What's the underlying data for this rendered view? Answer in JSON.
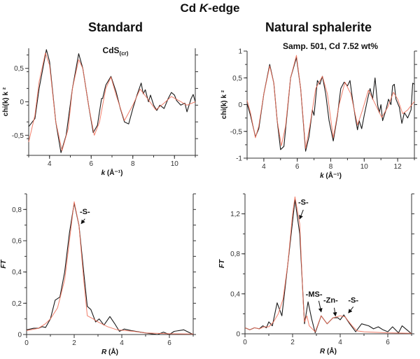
{
  "figure_title": "Cd K-edge",
  "figure_title_prefix": "Cd ",
  "figure_title_italic": "K",
  "figure_title_suffix": "-edge",
  "columns": [
    "Standard",
    "Natural sphalerite"
  ],
  "colors": {
    "experiment": "#1a1a1a",
    "fit": "#f0705a",
    "axis": "#333333"
  },
  "chart_data": [
    {
      "type": "line",
      "subtitle": "CdS",
      "subtitle_sub": "(cr)",
      "xlabel": "k (Å⁻¹)",
      "xlabel_italic": "k",
      "xlabel_rest": " (Å⁻¹)",
      "ylabel": "chi(k) k ²",
      "xlim": [
        3,
        11
      ],
      "ylim": [
        -0.8,
        0.8
      ],
      "xticks": [
        {
          "v": 4,
          "label": "4"
        },
        {
          "v": 6,
          "label": "6"
        },
        {
          "v": 8,
          "label": "8"
        },
        {
          "v": 10,
          "label": "10"
        }
      ],
      "yticks": [
        {
          "v": -0.5,
          "label": "-0,5"
        },
        {
          "v": 0,
          "label": "0"
        },
        {
          "v": 0.5,
          "label": "0,5"
        }
      ],
      "series": [
        {
          "role": "experiment",
          "x": [
            3,
            3.3,
            3.5,
            3.85,
            4.0,
            4.3,
            4.55,
            4.8,
            5.1,
            5.4,
            5.6,
            5.9,
            6.1,
            6.3,
            6.5,
            6.55,
            6.7,
            6.95,
            7.2,
            7.4,
            7.6,
            7.8,
            8.0,
            8.2,
            8.4,
            8.5,
            8.6,
            8.75,
            8.85,
            9.0,
            9.15,
            9.3,
            9.5,
            9.7,
            9.85,
            10.0,
            10.1,
            10.3,
            10.5,
            10.6,
            10.8,
            10.9,
            11
          ],
          "y": [
            -0.37,
            -0.25,
            0.2,
            0.78,
            0.6,
            -0.3,
            -0.76,
            -0.5,
            0.2,
            0.72,
            0.5,
            -0.1,
            -0.46,
            -0.35,
            0.05,
            0.05,
            0.25,
            0.38,
            0.15,
            -0.1,
            -0.3,
            -0.33,
            -0.1,
            0.1,
            0.28,
            0.12,
            0.18,
            0.0,
            0.1,
            -0.05,
            -0.13,
            -0.05,
            -0.1,
            0.05,
            0.14,
            0.1,
            0.02,
            -0.05,
            -0.02,
            -0.15,
            0.05,
            0.11,
            0.0
          ]
        },
        {
          "role": "fit",
          "x": [
            3,
            3.3,
            3.5,
            3.8,
            4.0,
            4.3,
            4.6,
            4.9,
            5.1,
            5.4,
            5.6,
            5.9,
            6.15,
            6.4,
            6.7,
            6.95,
            7.2,
            7.6,
            8.0,
            8.35,
            8.7,
            9.1,
            9.5,
            9.85,
            10.2,
            10.6,
            11
          ],
          "y": [
            -0.6,
            -0.2,
            0.3,
            0.73,
            0.55,
            -0.3,
            -0.73,
            -0.4,
            0.2,
            0.63,
            0.5,
            -0.1,
            -0.5,
            -0.3,
            0.2,
            0.37,
            0.1,
            -0.28,
            -0.05,
            0.19,
            0.05,
            -0.12,
            -0.02,
            0.08,
            0.02,
            -0.05,
            0.0
          ]
        }
      ],
      "annotations": []
    },
    {
      "type": "line",
      "subtitle": "Samp. 501, Cd 7.52 wt%",
      "subtitle_sub": "",
      "xlabel": "k (Å⁻¹)",
      "xlabel_italic": "k",
      "xlabel_rest": " (Å⁻¹)",
      "ylabel": "chi(k) k ²",
      "xlim": [
        3,
        13
      ],
      "ylim": [
        -1,
        1
      ],
      "xticks": [
        {
          "v": 4,
          "label": "4"
        },
        {
          "v": 6,
          "label": "6"
        },
        {
          "v": 8,
          "label": "8"
        },
        {
          "v": 10,
          "label": "10"
        },
        {
          "v": 12,
          "label": "12"
        }
      ],
      "yticks": [
        {
          "v": -1,
          "label": "-1"
        },
        {
          "v": -0.5,
          "label": "-0,5"
        },
        {
          "v": 0,
          "label": "0"
        },
        {
          "v": 0.5,
          "label": "0,5"
        },
        {
          "v": 1,
          "label": "1"
        }
      ],
      "series": [
        {
          "role": "experiment",
          "x": [
            3,
            3.2,
            3.5,
            3.7,
            4.0,
            4.35,
            4.6,
            4.8,
            5.0,
            5.2,
            5.6,
            5.95,
            6.2,
            6.5,
            6.7,
            6.9,
            7.0,
            7.2,
            7.35,
            7.5,
            7.7,
            7.9,
            8.15,
            8.4,
            8.6,
            8.8,
            9.0,
            9.15,
            9.3,
            9.5,
            9.6,
            9.7,
            9.85,
            10.0,
            10.2,
            10.35,
            10.5,
            10.65,
            10.8,
            10.9,
            11.0,
            11.1,
            11.3,
            11.45,
            11.6,
            11.7,
            11.8,
            11.9,
            12.1,
            12.25,
            12.4,
            12.6,
            12.8,
            12.9,
            13
          ],
          "y": [
            0.02,
            -0.2,
            -0.6,
            -0.45,
            0.2,
            0.75,
            0.4,
            -0.3,
            -0.84,
            -0.78,
            0.5,
            0.88,
            0.3,
            -0.87,
            -0.6,
            -0.1,
            -0.2,
            0.45,
            0.38,
            0.53,
            0.2,
            -0.3,
            -0.68,
            -0.2,
            0.3,
            0.42,
            0.35,
            0.45,
            0.1,
            -0.3,
            -0.47,
            -0.3,
            -0.45,
            -0.2,
            0.1,
            0.3,
            0.1,
            0.5,
            0.0,
            -0.15,
            0.0,
            -0.3,
            -0.1,
            0.1,
            0.0,
            0.35,
            0.38,
            0.1,
            -0.05,
            -0.35,
            -0.15,
            -0.25,
            -0.1,
            0.4,
            0.38
          ]
        },
        {
          "role": "fit",
          "x": [
            3,
            3.2,
            3.5,
            3.7,
            4.0,
            4.35,
            4.6,
            4.8,
            5.05,
            5.3,
            5.6,
            5.95,
            6.2,
            6.5,
            6.75,
            7.1,
            7.5,
            7.8,
            8.15,
            8.5,
            8.85,
            9.2,
            9.6,
            9.9,
            10.25,
            10.6,
            11.05,
            11.4,
            11.75,
            12.0,
            12.3,
            12.6,
            13
          ],
          "y": [
            0.08,
            -0.15,
            -0.62,
            -0.4,
            0.2,
            0.72,
            0.4,
            -0.3,
            -0.77,
            -0.4,
            0.5,
            0.92,
            0.3,
            -0.82,
            -0.4,
            0.3,
            0.53,
            0.2,
            -0.62,
            0.0,
            0.42,
            0.2,
            -0.38,
            -0.1,
            0.27,
            0.05,
            -0.24,
            -0.05,
            0.23,
            0.1,
            -0.17,
            -0.1,
            0.06
          ]
        }
      ],
      "annotations": []
    },
    {
      "type": "line",
      "subtitle": "",
      "subtitle_sub": "",
      "xlabel": "R (Å)",
      "xlabel_italic": "R",
      "xlabel_rest": " (Å)",
      "ylabel": "FT",
      "xlim": [
        0,
        7
      ],
      "ylim": [
        0,
        0.9
      ],
      "xticks": [
        {
          "v": 0,
          "label": "0"
        },
        {
          "v": 2,
          "label": "2"
        },
        {
          "v": 4,
          "label": "4"
        },
        {
          "v": 6,
          "label": "6"
        }
      ],
      "yticks": [
        {
          "v": 0,
          "label": "0"
        },
        {
          "v": 0.2,
          "label": "0,2"
        },
        {
          "v": 0.4,
          "label": "0,4"
        },
        {
          "v": 0.6,
          "label": "0,6"
        },
        {
          "v": 0.8,
          "label": "0,8"
        }
      ],
      "series": [
        {
          "role": "experiment",
          "x": [
            0,
            0.3,
            0.5,
            0.65,
            0.8,
            1.0,
            1.2,
            1.4,
            1.6,
            1.8,
            2.0,
            2.2,
            2.4,
            2.55,
            2.7,
            2.9,
            3.05,
            3.25,
            3.5,
            3.7,
            3.9,
            4.1,
            4.4,
            5,
            5.5,
            5.75,
            6.0,
            6.2,
            6.6,
            7
          ],
          "y": [
            0.03,
            0.04,
            0.04,
            0.05,
            0.045,
            0.1,
            0.22,
            0.24,
            0.4,
            0.65,
            0.84,
            0.7,
            0.4,
            0.18,
            0.16,
            0.08,
            0.1,
            0.06,
            0.115,
            0.07,
            0.02,
            0.035,
            0.025,
            0.01,
            0.0,
            0.015,
            0.0,
            0.02,
            0.03,
            0.0
          ]
        },
        {
          "role": "fit",
          "x": [
            0,
            0.5,
            0.8,
            1.0,
            1.3,
            1.6,
            1.8,
            2.0,
            2.2,
            2.4,
            2.55,
            2.8,
            3.0,
            3.4,
            3.8,
            4.5,
            5,
            6,
            7
          ],
          "y": [
            0.025,
            0.04,
            0.07,
            0.1,
            0.17,
            0.35,
            0.6,
            0.85,
            0.7,
            0.35,
            0.12,
            0.1,
            0.08,
            0.05,
            0.03,
            0.02,
            0.01,
            0.005,
            0.003
          ]
        }
      ],
      "annotations": [
        {
          "text": "-S-"
        }
      ]
    },
    {
      "type": "line",
      "subtitle": "",
      "subtitle_sub": "",
      "xlabel": "R (Å)",
      "xlabel_italic": "R",
      "xlabel_rest": " (Å)",
      "ylabel": "FT",
      "xlim": [
        0,
        7
      ],
      "ylim": [
        0,
        1.4
      ],
      "xticks": [
        {
          "v": 0,
          "label": "0"
        },
        {
          "v": 2,
          "label": "2"
        },
        {
          "v": 4,
          "label": "4"
        },
        {
          "v": 6,
          "label": "6"
        }
      ],
      "yticks": [
        {
          "v": 0,
          "label": "0"
        },
        {
          "v": 0.4,
          "label": "0,4"
        },
        {
          "v": 0.8,
          "label": "0,8"
        },
        {
          "v": 1.2,
          "label": "1,2"
        }
      ],
      "series": [
        {
          "role": "experiment",
          "x": [
            0,
            0.2,
            0.4,
            0.6,
            0.75,
            0.9,
            1.0,
            1.15,
            1.35,
            1.55,
            1.8,
            2.1,
            2.3,
            2.5,
            2.65,
            2.8,
            2.95,
            3.2,
            3.45,
            3.7,
            3.9,
            4.0,
            4.15,
            4.4,
            4.65,
            4.9,
            5.2,
            5.4,
            5.6,
            5.8,
            6.0,
            6.2,
            6.45,
            6.6,
            6.85,
            7
          ],
          "y": [
            0.06,
            0.04,
            0.06,
            0.05,
            0.08,
            0.06,
            0.12,
            0.08,
            0.31,
            0.18,
            0.7,
            1.34,
            1.0,
            0.1,
            0.32,
            0.15,
            0.01,
            0.18,
            0.1,
            0.16,
            0.16,
            0.14,
            0.19,
            0.1,
            0.02,
            0.1,
            0.08,
            0.05,
            0.07,
            0.04,
            0.02,
            0.07,
            0.01,
            0.08,
            0.03,
            0.0
          ]
        },
        {
          "role": "fit",
          "x": [
            0,
            0.2,
            0.4,
            0.6,
            0.8,
            1.0,
            1.2,
            1.4,
            1.6,
            1.8,
            2.0,
            2.1,
            2.3,
            2.45,
            2.5,
            2.6,
            2.7,
            2.95,
            3.2,
            3.45,
            3.7,
            4.0,
            4.2,
            4.5,
            4.7,
            5.0,
            6,
            7
          ],
          "y": [
            0.06,
            0.04,
            0.06,
            0.05,
            0.07,
            0.07,
            0.12,
            0.2,
            0.35,
            0.7,
            1.2,
            1.37,
            1.1,
            0.3,
            0.12,
            0.18,
            0.08,
            0.02,
            0.18,
            0.1,
            0.16,
            0.18,
            0.17,
            0.08,
            0.03,
            0.02,
            0.01,
            0.005
          ]
        }
      ],
      "annotations": [
        {
          "text": "-S-"
        },
        {
          "text": "-MS-"
        },
        {
          "text": "-Zn-"
        },
        {
          "text": "-S-"
        }
      ]
    }
  ]
}
